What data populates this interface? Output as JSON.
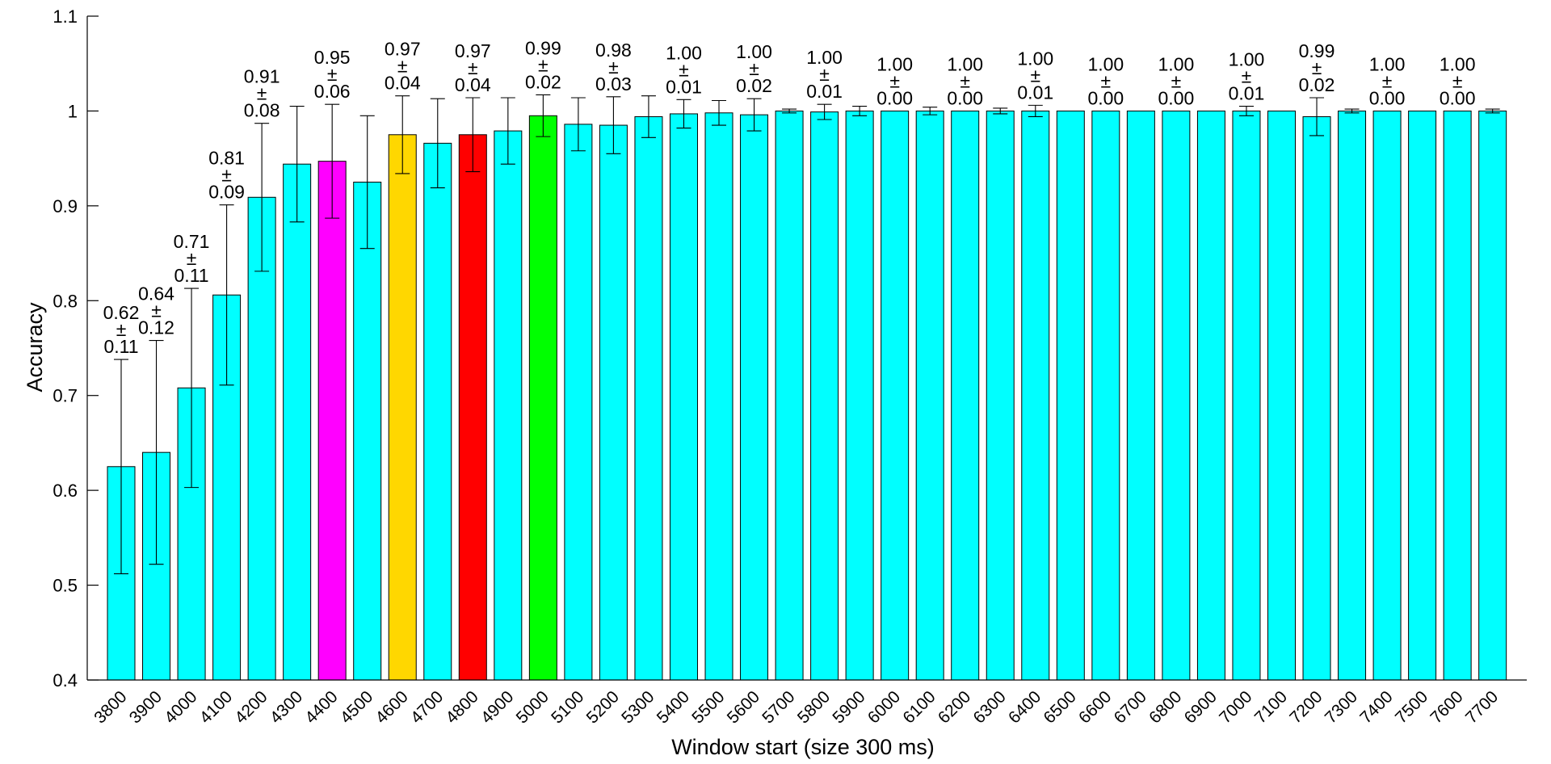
{
  "chart_data": {
    "type": "bar",
    "title": "",
    "xlabel": "Window start (size 300 ms)",
    "ylabel": "Accuracy",
    "ylim": [
      0.4,
      1.1
    ],
    "yticks": [
      "0.4",
      "0.5",
      "0.6",
      "0.7",
      "0.8",
      "0.9",
      "1",
      "1.1"
    ],
    "grid": false,
    "legend": "none",
    "categories": [
      "3800",
      "3900",
      "4000",
      "4100",
      "4200",
      "4300",
      "4400",
      "4500",
      "4600",
      "4700",
      "4800",
      "4900",
      "5000",
      "5100",
      "5200",
      "5300",
      "5400",
      "5500",
      "5600",
      "5700",
      "5800",
      "5900",
      "6000",
      "6100",
      "6200",
      "6300",
      "6400",
      "6500",
      "6600",
      "6700",
      "6800",
      "6900",
      "7000",
      "7100",
      "7200",
      "7300",
      "7400",
      "7500",
      "7600",
      "7700"
    ],
    "values": [
      0.625,
      0.64,
      0.708,
      0.806,
      0.909,
      0.944,
      0.947,
      0.925,
      0.975,
      0.966,
      0.975,
      0.979,
      0.995,
      0.986,
      0.985,
      0.994,
      0.997,
      0.998,
      0.996,
      1.0,
      0.999,
      1.0,
      1.0,
      1.0,
      1.0,
      1.0,
      1.0,
      1.0,
      1.0,
      1.0,
      1.0,
      1.0,
      1.0,
      1.0,
      0.994,
      1.0,
      1.0,
      1.0,
      1.0,
      1.0
    ],
    "errors": [
      0.113,
      0.118,
      0.105,
      0.095,
      0.078,
      0.061,
      0.06,
      0.07,
      0.041,
      0.047,
      0.039,
      0.035,
      0.022,
      0.028,
      0.03,
      0.022,
      0.015,
      0.013,
      0.017,
      0.002,
      0.008,
      0.005,
      0.0,
      0.004,
      0.0,
      0.003,
      0.006,
      0.0,
      0.0,
      0.0,
      0.0,
      0.0,
      0.005,
      0.0,
      0.02,
      0.002,
      0.0,
      0.0,
      0.0,
      0.002
    ],
    "colors": [
      "#00ffff",
      "#00ffff",
      "#00ffff",
      "#00ffff",
      "#00ffff",
      "#00ffff",
      "#ff00ff",
      "#00ffff",
      "#ffd700",
      "#00ffff",
      "#ff0000",
      "#00ffff",
      "#00ff00",
      "#00ffff",
      "#00ffff",
      "#00ffff",
      "#00ffff",
      "#00ffff",
      "#00ffff",
      "#00ffff",
      "#00ffff",
      "#00ffff",
      "#00ffff",
      "#00ffff",
      "#00ffff",
      "#00ffff",
      "#00ffff",
      "#00ffff",
      "#00ffff",
      "#00ffff",
      "#00ffff",
      "#00ffff",
      "#00ffff",
      "#00ffff",
      "#00ffff",
      "#00ffff",
      "#00ffff",
      "#00ffff",
      "#00ffff",
      "#00ffff"
    ],
    "annotations": [
      {
        "index": 0,
        "mean": "0.62",
        "pm": "±",
        "err": "0.11"
      },
      {
        "index": 1,
        "mean": "0.64",
        "pm": "±",
        "err": "0.12"
      },
      {
        "index": 2,
        "mean": "0.71",
        "pm": "±",
        "err": "0.11"
      },
      {
        "index": 3,
        "mean": "0.81",
        "pm": "±",
        "err": "0.09"
      },
      {
        "index": 4,
        "mean": "0.91",
        "pm": "±",
        "err": "0.08"
      },
      {
        "index": 6,
        "mean": "0.95",
        "pm": "±",
        "err": "0.06"
      },
      {
        "index": 8,
        "mean": "0.97",
        "pm": "±",
        "err": "0.04"
      },
      {
        "index": 10,
        "mean": "0.97",
        "pm": "±",
        "err": "0.04"
      },
      {
        "index": 12,
        "mean": "0.99",
        "pm": "±",
        "err": "0.02"
      },
      {
        "index": 14,
        "mean": "0.98",
        "pm": "±",
        "err": "0.03"
      },
      {
        "index": 16,
        "mean": "1.00",
        "pm": "±",
        "err": "0.01"
      },
      {
        "index": 18,
        "mean": "1.00",
        "pm": "±",
        "err": "0.02"
      },
      {
        "index": 20,
        "mean": "1.00",
        "pm": "±",
        "err": "0.01"
      },
      {
        "index": 22,
        "mean": "1.00",
        "pm": "±",
        "err": "0.00"
      },
      {
        "index": 24,
        "mean": "1.00",
        "pm": "±",
        "err": "0.00"
      },
      {
        "index": 26,
        "mean": "1.00",
        "pm": "±",
        "err": "0.01"
      },
      {
        "index": 28,
        "mean": "1.00",
        "pm": "±",
        "err": "0.00"
      },
      {
        "index": 30,
        "mean": "1.00",
        "pm": "±",
        "err": "0.00"
      },
      {
        "index": 32,
        "mean": "1.00",
        "pm": "±",
        "err": "0.01"
      },
      {
        "index": 34,
        "mean": "0.99",
        "pm": "±",
        "err": "0.02"
      },
      {
        "index": 36,
        "mean": "1.00",
        "pm": "±",
        "err": "0.00"
      },
      {
        "index": 38,
        "mean": "1.00",
        "pm": "±",
        "err": "0.00"
      }
    ]
  }
}
